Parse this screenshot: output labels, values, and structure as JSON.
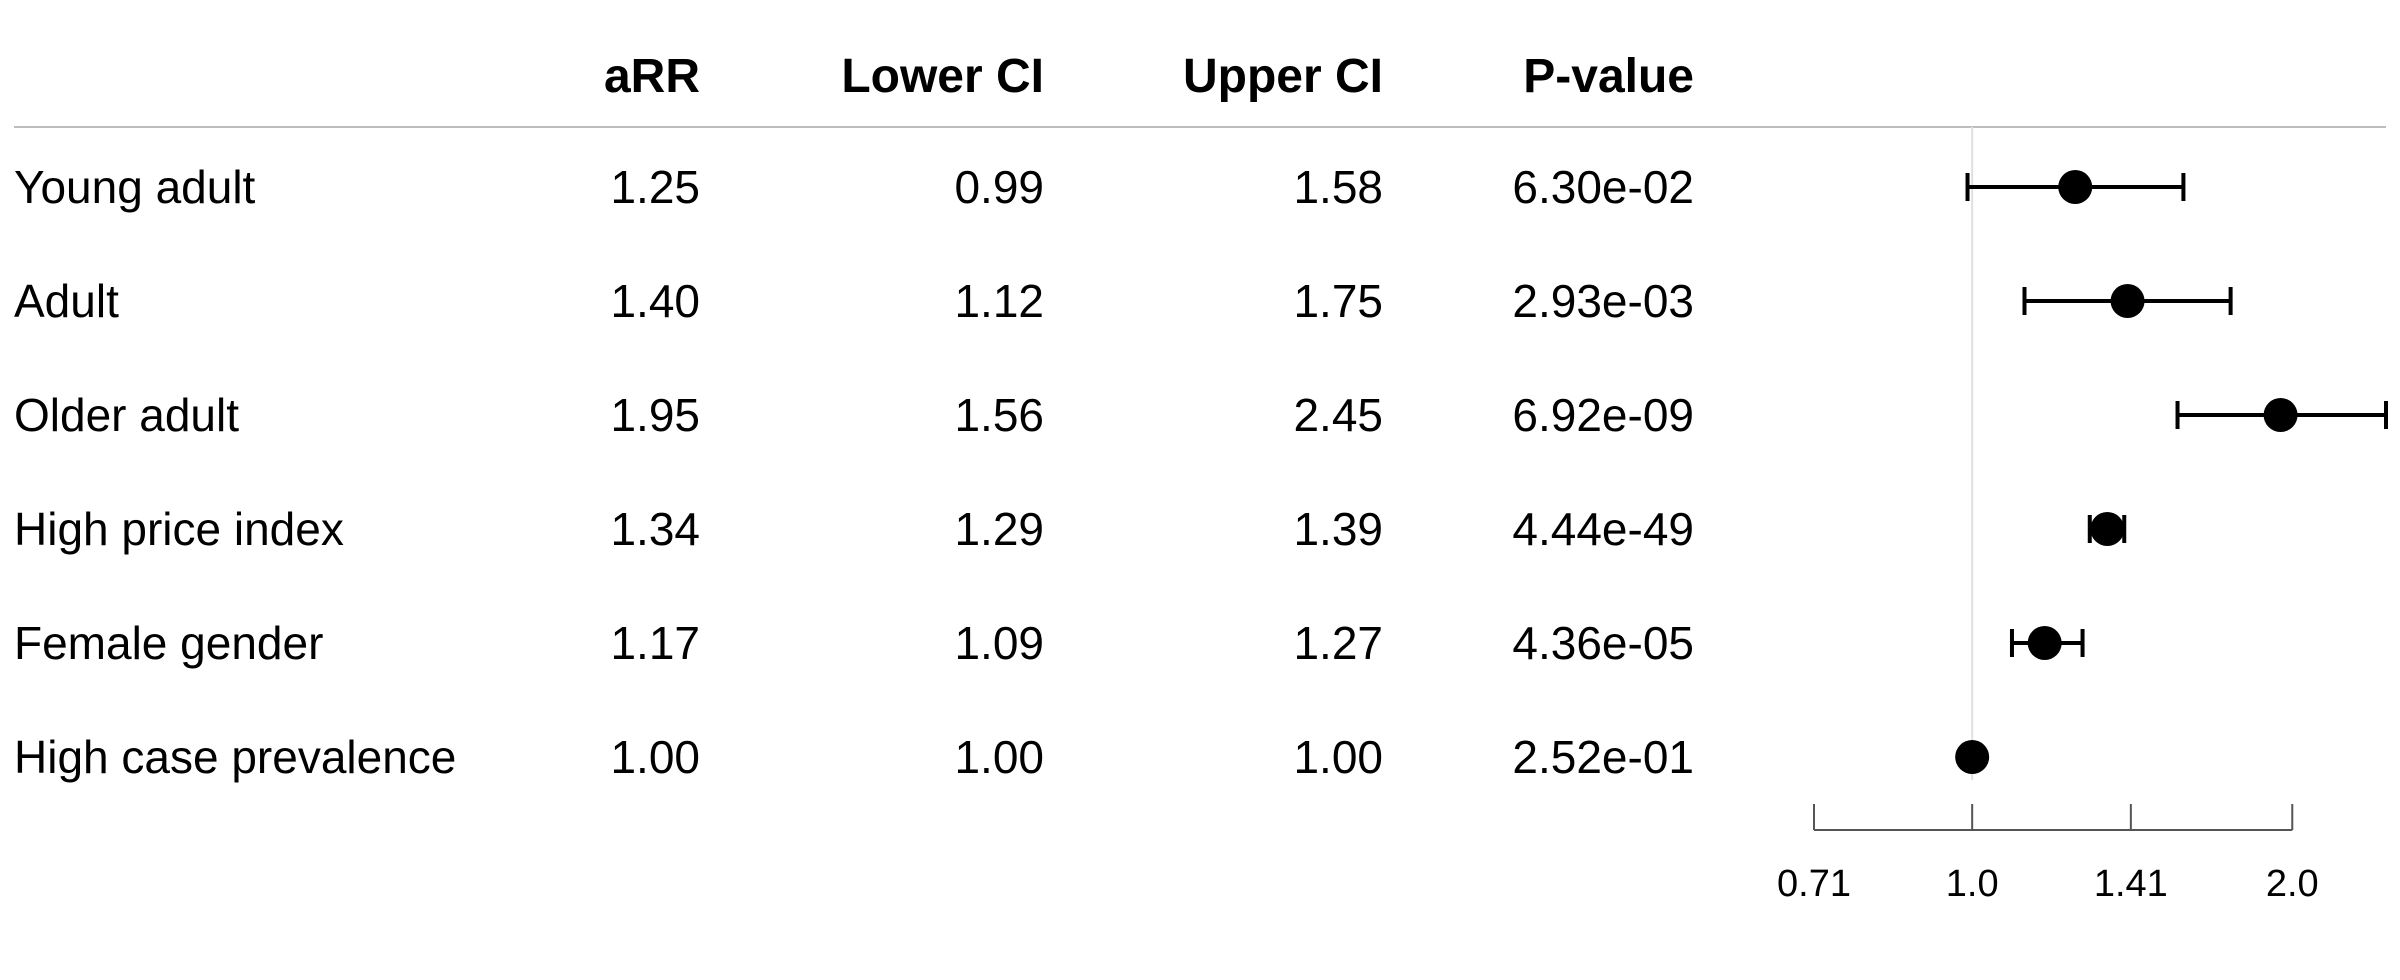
{
  "chart_data": {
    "type": "table",
    "columns": [
      "aRR",
      "Lower CI",
      "Upper CI",
      "P-value"
    ],
    "rows": [
      {
        "label": "Young adult",
        "aRR": "1.25",
        "lower": "0.99",
        "upper": "1.58",
        "p": "6.30e-02"
      },
      {
        "label": "Adult",
        "aRR": "1.40",
        "lower": "1.12",
        "upper": "1.75",
        "p": "2.93e-03"
      },
      {
        "label": "Older adult",
        "aRR": "1.95",
        "lower": "1.56",
        "upper": "2.45",
        "p": "6.92e-09"
      },
      {
        "label": "High price index",
        "aRR": "1.34",
        "lower": "1.29",
        "upper": "1.39",
        "p": "4.44e-49"
      },
      {
        "label": "Female gender",
        "aRR": "1.17",
        "lower": "1.09",
        "upper": "1.27",
        "p": "4.36e-05"
      },
      {
        "label": "High case prevalence",
        "aRR": "1.00",
        "lower": "1.00",
        "upper": "1.00",
        "p": "2.52e-01"
      }
    ],
    "x_scale": "log",
    "xlim": [
      0.71,
      2.45
    ],
    "reference_line": 1.0,
    "ticks": [
      {
        "value": 0.71,
        "label": "0.71"
      },
      {
        "value": 1.0,
        "label": "1.0"
      },
      {
        "value": 1.41,
        "label": "1.41"
      },
      {
        "value": 2.0,
        "label": "2.0"
      }
    ],
    "grid": false,
    "colors": {
      "marker": "#000000",
      "reference_line": "#e0e0e0",
      "header_rule": "#bdbdbd",
      "axis": "#555555"
    }
  }
}
